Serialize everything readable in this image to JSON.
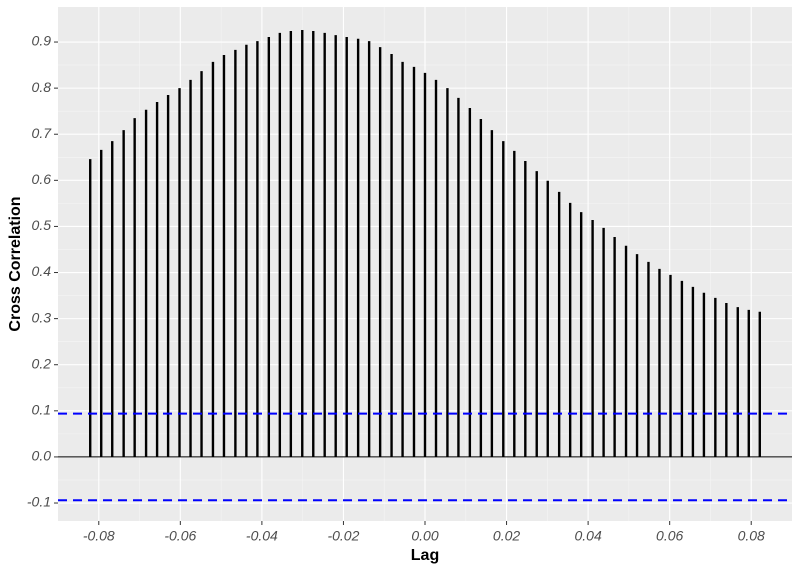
{
  "chart_data": {
    "type": "stem",
    "x_label": "Lag",
    "y_label": "Cross Correlation",
    "x": [
      -0.0821,
      -0.0794,
      -0.0767,
      -0.0739,
      -0.0712,
      -0.0684,
      -0.0657,
      -0.063,
      -0.0602,
      -0.0575,
      -0.0548,
      -0.052,
      -0.0493,
      -0.0465,
      -0.0438,
      -0.0411,
      -0.0383,
      -0.0356,
      -0.0329,
      -0.0301,
      -0.0274,
      -0.0246,
      -0.0219,
      -0.0192,
      -0.0164,
      -0.0137,
      -0.011,
      -0.0082,
      -0.0055,
      -0.0027,
      0,
      0.0027,
      0.0055,
      0.0082,
      0.011,
      0.0137,
      0.0164,
      0.0192,
      0.0219,
      0.0246,
      0.0274,
      0.0301,
      0.0329,
      0.0356,
      0.0383,
      0.0411,
      0.0438,
      0.0465,
      0.0493,
      0.052,
      0.0548,
      0.0575,
      0.0602,
      0.063,
      0.0657,
      0.0684,
      0.0712,
      0.0739,
      0.0767,
      0.0794,
      0.0821
    ],
    "values": [
      0.646,
      0.666,
      0.685,
      0.709,
      0.735,
      0.753,
      0.77,
      0.785,
      0.8,
      0.818,
      0.837,
      0.857,
      0.872,
      0.883,
      0.894,
      0.902,
      0.911,
      0.92,
      0.924,
      0.926,
      0.924,
      0.92,
      0.915,
      0.911,
      0.907,
      0.902,
      0.889,
      0.874,
      0.857,
      0.846,
      0.833,
      0.818,
      0.8,
      0.779,
      0.757,
      0.733,
      0.709,
      0.685,
      0.664,
      0.642,
      0.62,
      0.599,
      0.575,
      0.551,
      0.531,
      0.514,
      0.497,
      0.477,
      0.458,
      0.44,
      0.423,
      0.408,
      0.395,
      0.382,
      0.369,
      0.356,
      0.345,
      0.334,
      0.325,
      0.319,
      0.315
    ],
    "color": "#000000",
    "confidence_lines": [
      0.094,
      -0.094
    ],
    "confidence_color": "#0000ff",
    "xlim": [
      -0.09,
      0.09
    ],
    "xticks": [
      -0.08,
      -0.06,
      -0.04,
      -0.02,
      {
        "value": 0,
        "label": "0.00"
      },
      0.02,
      0.04,
      0.06,
      0.08
    ],
    "ylim": [
      -0.139,
      0.976
    ],
    "yticks": [
      -0.1,
      {
        "value": 0,
        "label": "0.0"
      },
      0.1,
      0.2,
      0.3,
      0.4,
      0.5,
      0.6,
      0.7,
      0.8,
      0.9
    ],
    "grid": true
  }
}
